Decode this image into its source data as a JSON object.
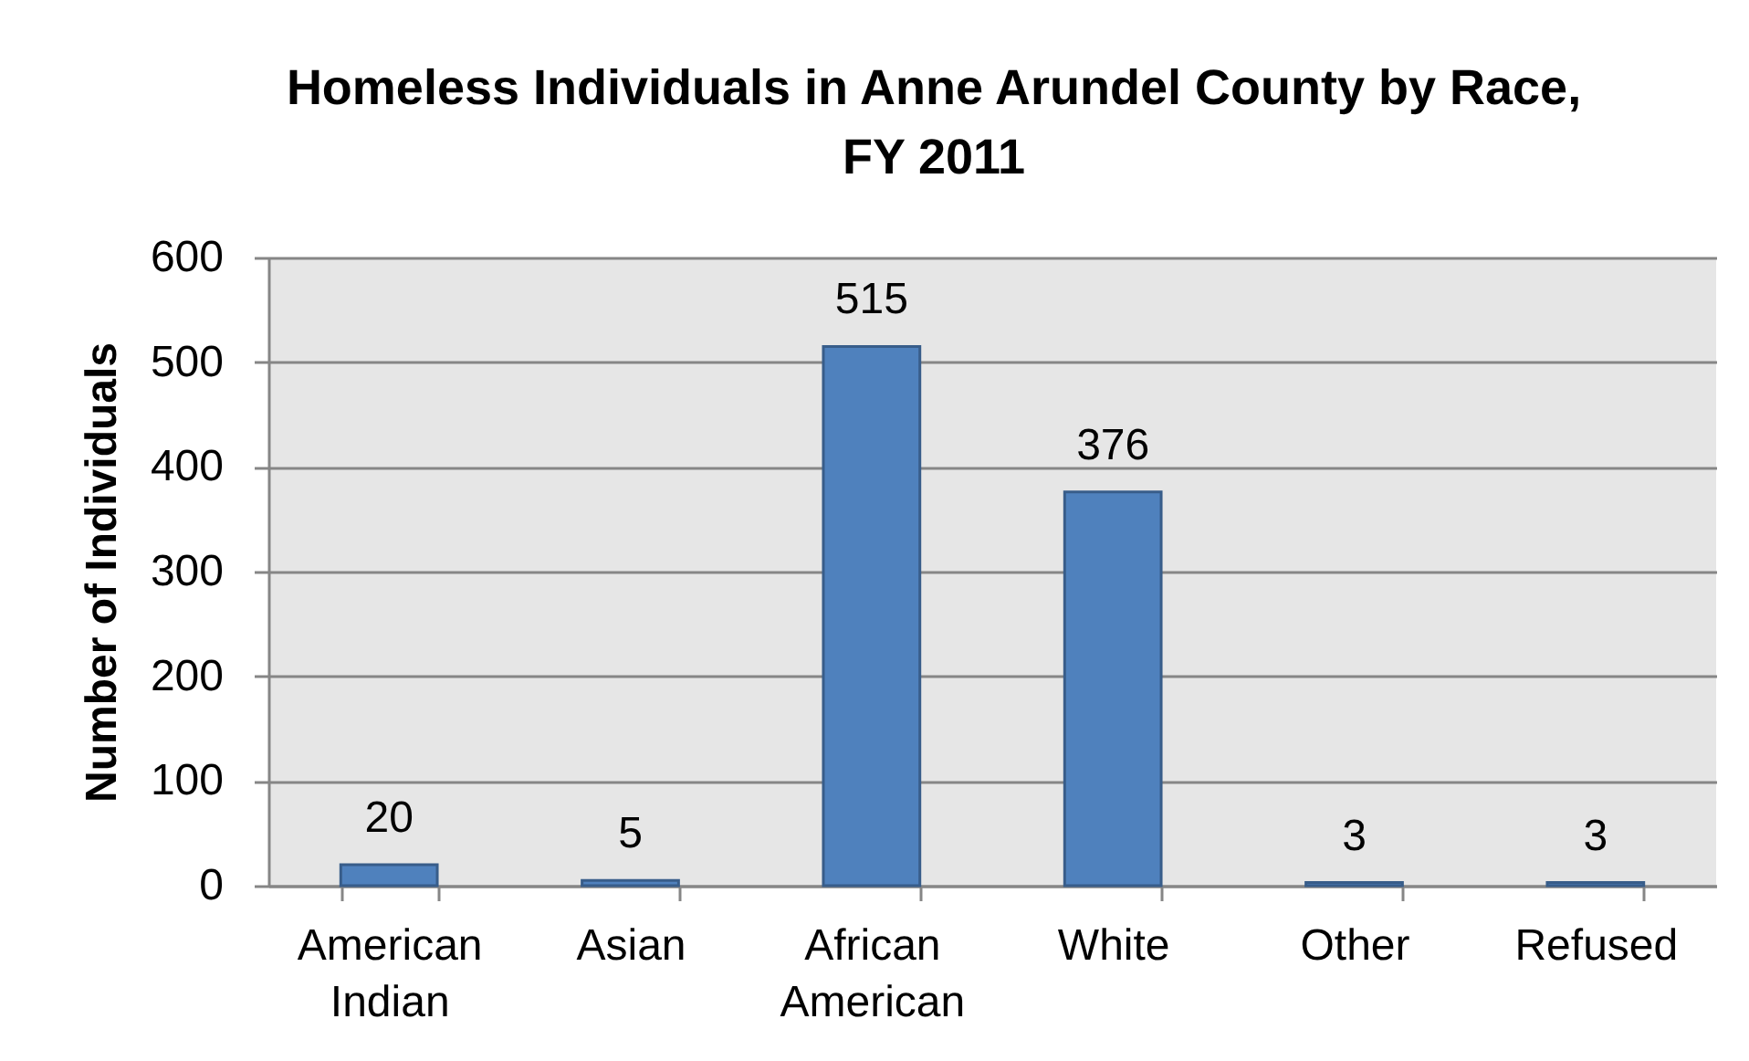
{
  "chart_data": {
    "type": "bar",
    "title": "Homeless Individuals in Anne Arundel County by Race, FY 2011",
    "ylabel": "Number of Individuals",
    "categories": [
      "American Indian",
      "Asian",
      "African American",
      "White",
      "Other",
      "Refused"
    ],
    "values": [
      20,
      5,
      515,
      376,
      3,
      3
    ],
    "color": "#4f81bd",
    "ylim": [
      0,
      600
    ],
    "yticks": [
      0,
      100,
      200,
      300,
      400,
      500,
      600
    ],
    "grid": "y",
    "data_labels": true
  }
}
